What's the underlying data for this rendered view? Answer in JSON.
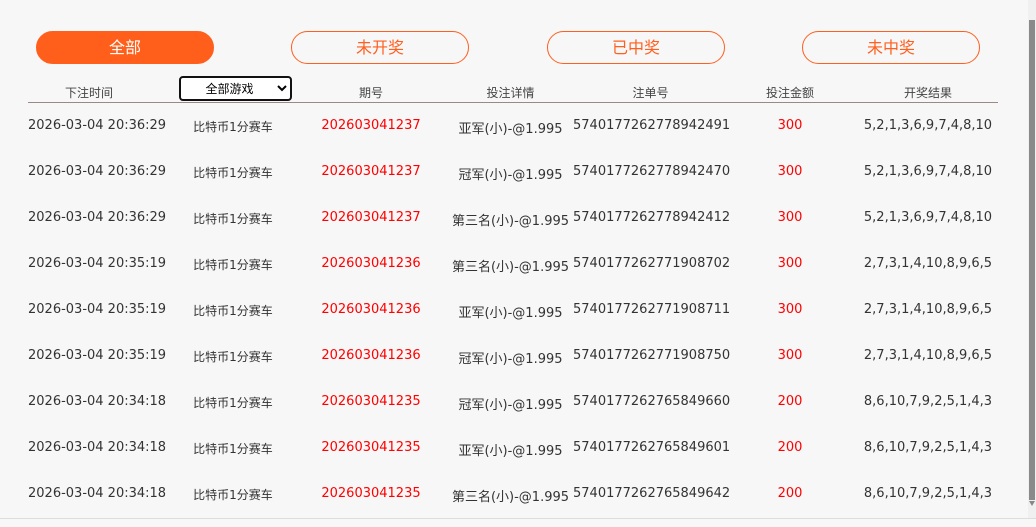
{
  "tabs": [
    {
      "label": "全部",
      "active": true
    },
    {
      "label": "未开奖"
    },
    {
      "label": "已中奖"
    },
    {
      "label": "未中奖"
    }
  ],
  "columns": {
    "time": "下注时间",
    "game_select": "全部游戏",
    "period": "期号",
    "detail": "投注详情",
    "order": "注单号",
    "amount": "投注金额",
    "result": "开奖结果"
  },
  "rows": [
    {
      "time": "2026-03-04 20:36:29",
      "game": "比特币1分赛车",
      "period": "202603041237",
      "detail": "亚军(小)-@1.995",
      "order": "5740177262778942491",
      "amount": "300",
      "result": "5,2,1,3,6,9,7,4,8,10"
    },
    {
      "time": "2026-03-04 20:36:29",
      "game": "比特币1分赛车",
      "period": "202603041237",
      "detail": "冠军(小)-@1.995",
      "order": "5740177262778942470",
      "amount": "300",
      "result": "5,2,1,3,6,9,7,4,8,10"
    },
    {
      "time": "2026-03-04 20:36:29",
      "game": "比特币1分赛车",
      "period": "202603041237",
      "detail": "第三名(小)-@1.995",
      "order": "5740177262778942412",
      "amount": "300",
      "result": "5,2,1,3,6,9,7,4,8,10"
    },
    {
      "time": "2026-03-04 20:35:19",
      "game": "比特币1分赛车",
      "period": "202603041236",
      "detail": "第三名(小)-@1.995",
      "order": "5740177262771908702",
      "amount": "300",
      "result": "2,7,3,1,4,10,8,9,6,5"
    },
    {
      "time": "2026-03-04 20:35:19",
      "game": "比特币1分赛车",
      "period": "202603041236",
      "detail": "亚军(小)-@1.995",
      "order": "5740177262771908711",
      "amount": "300",
      "result": "2,7,3,1,4,10,8,9,6,5"
    },
    {
      "time": "2026-03-04 20:35:19",
      "game": "比特币1分赛车",
      "period": "202603041236",
      "detail": "冠军(小)-@1.995",
      "order": "5740177262771908750",
      "amount": "300",
      "result": "2,7,3,1,4,10,8,9,6,5"
    },
    {
      "time": "2026-03-04 20:34:18",
      "game": "比特币1分赛车",
      "period": "202603041235",
      "detail": "冠军(小)-@1.995",
      "order": "5740177262765849660",
      "amount": "200",
      "result": "8,6,10,7,9,2,5,1,4,3"
    },
    {
      "time": "2026-03-04 20:34:18",
      "game": "比特币1分赛车",
      "period": "202603041235",
      "detail": "亚军(小)-@1.995",
      "order": "5740177262765849601",
      "amount": "200",
      "result": "8,6,10,7,9,2,5,1,4,3"
    },
    {
      "time": "2026-03-04 20:34:18",
      "game": "比特币1分赛车",
      "period": "202603041235",
      "detail": "第三名(小)-@1.995",
      "order": "5740177262765849642",
      "amount": "200",
      "result": "8,6,10,7,9,2,5,1,4,3"
    }
  ],
  "colors": {
    "accent": "#ff5f1a",
    "highlight": "#ff0000"
  }
}
